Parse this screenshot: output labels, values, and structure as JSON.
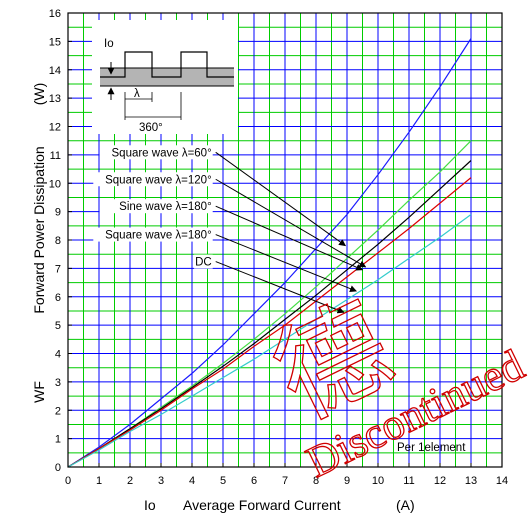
{
  "chart_data": {
    "type": "line",
    "title": "",
    "xlabel_symbol": "Io",
    "xlabel": "Average Forward Current",
    "xlabel_unit": "(A)",
    "ylabel_symbol": "WF",
    "ylabel": "Forward Power Dissipation",
    "ylabel_unit": "(W)",
    "xlim": [
      0,
      14
    ],
    "ylim": [
      0,
      16
    ],
    "x_ticks": [
      "0",
      "1",
      "2",
      "3",
      "4",
      "5",
      "6",
      "7",
      "8",
      "9",
      "10",
      "11",
      "12",
      "13",
      "14"
    ],
    "y_ticks": [
      "0",
      "1",
      "2",
      "3",
      "4",
      "5",
      "6",
      "7",
      "8",
      "9",
      "10",
      "11",
      "12",
      "13",
      "14",
      "15",
      "16"
    ],
    "grid": true,
    "grid_colors": {
      "major": "#0000ff",
      "minor": "#00cc00"
    },
    "series": [
      {
        "color": "#1a1aff",
        "x": [
          0,
          1,
          2,
          3,
          4,
          5,
          6,
          7,
          8,
          9,
          10,
          11,
          12,
          13
        ],
        "y": [
          0,
          0.7,
          1.5,
          2.4,
          3.3,
          4.3,
          5.4,
          6.5,
          7.7,
          8.9,
          10.3,
          11.8,
          13.4,
          15.1
        ]
      },
      {
        "color": "#44dd44",
        "x": [
          0,
          1,
          2,
          3,
          4,
          5,
          6,
          7,
          8,
          9,
          10,
          11,
          12,
          13
        ],
        "y": [
          0,
          0.65,
          1.35,
          2.1,
          2.85,
          3.65,
          4.5,
          5.4,
          6.35,
          7.35,
          8.35,
          9.4,
          10.4,
          11.5
        ]
      },
      {
        "color": "#000000",
        "x": [
          0,
          1,
          2,
          3,
          4,
          5,
          6,
          7,
          8,
          9,
          10,
          11,
          12,
          13
        ],
        "y": [
          0,
          0.65,
          1.35,
          2.05,
          2.8,
          3.55,
          4.35,
          5.2,
          6.05,
          6.95,
          7.85,
          8.8,
          9.8,
          10.8
        ]
      },
      {
        "color": "#dd0000",
        "x": [
          0,
          1,
          2,
          3,
          4,
          5,
          6,
          7,
          8,
          9,
          10,
          11,
          12,
          13
        ],
        "y": [
          0,
          0.65,
          1.3,
          2.0,
          2.75,
          3.45,
          4.25,
          5.0,
          5.85,
          6.7,
          7.55,
          8.4,
          9.3,
          10.2
        ]
      },
      {
        "color": "#33cccc",
        "x": [
          0,
          1,
          2,
          3,
          4,
          5,
          6,
          7,
          8,
          9,
          10,
          11,
          12,
          13
        ],
        "y": [
          0,
          0.6,
          1.25,
          1.85,
          2.5,
          3.15,
          3.8,
          4.5,
          5.2,
          5.9,
          6.6,
          7.35,
          8.1,
          8.9
        ]
      }
    ],
    "annotations": [
      {
        "text": "Square wave λ=60°",
        "label_at": [
          4.7,
          10.95
        ],
        "arrow_to": [
          8.95,
          7.8
        ]
      },
      {
        "text": "Square wave λ=120°",
        "label_at": [
          4.7,
          10.0
        ],
        "arrow_to": [
          9.6,
          7.05
        ]
      },
      {
        "text": "Sine wave  λ=180°",
        "label_at": [
          4.7,
          9.05
        ],
        "arrow_to": [
          9.5,
          6.95
        ]
      },
      {
        "text": "Square wave λ=180°",
        "label_at": [
          4.7,
          8.05
        ],
        "arrow_to": [
          9.3,
          6.2
        ]
      },
      {
        "text": "DC",
        "label_at": [
          4.7,
          7.1
        ],
        "arrow_to": [
          8.9,
          5.45
        ]
      }
    ],
    "note": "Per 1element",
    "inset": {
      "current_label": "Io",
      "width_label": "λ",
      "period_label": "360°"
    },
    "watermark": {
      "words": [
        "Discontinued",
        "德"
      ],
      "color": "#d00000"
    }
  }
}
